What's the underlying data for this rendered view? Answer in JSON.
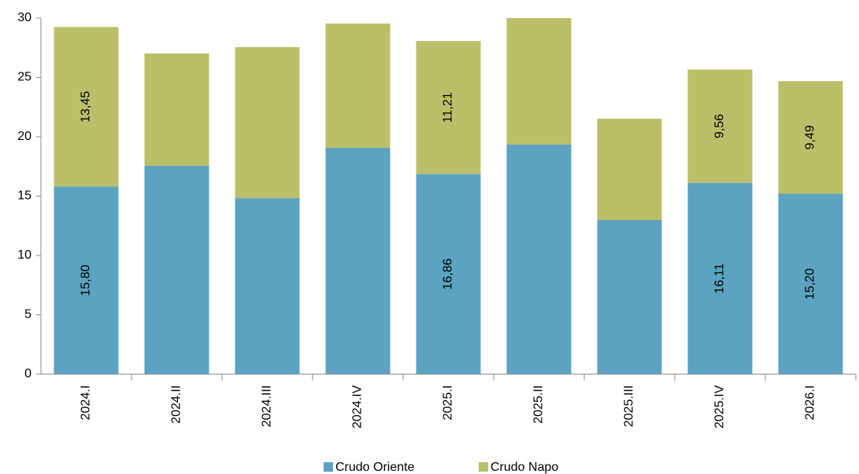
{
  "chart_data": {
    "type": "stacked_bar",
    "categories": [
      "2024.I",
      "2024.II",
      "2024.III",
      "2024.IV",
      "2025.I",
      "2025.II",
      "2025.III",
      "2025.IV",
      "2026.I"
    ],
    "series": [
      {
        "name": "Crudo Oriente",
        "color": "#5ba3c0",
        "values": [
          15.8,
          17.55,
          14.83,
          19.07,
          16.86,
          19.34,
          12.98,
          16.11,
          15.2
        ],
        "value_labels": [
          "15,80",
          null,
          null,
          null,
          "16,86",
          null,
          null,
          "16,11",
          "15,20"
        ]
      },
      {
        "name": "Crudo Napo",
        "color": "#bbbf6a",
        "values": [
          13.45,
          9.47,
          12.72,
          10.47,
          11.21,
          10.66,
          8.54,
          9.56,
          9.49
        ],
        "value_labels": [
          "13,45",
          null,
          null,
          null,
          "11,21",
          null,
          null,
          "9,56",
          "9,49"
        ]
      }
    ],
    "ylim": [
      0,
      30
    ],
    "yticks": [
      0,
      5,
      10,
      15,
      20,
      25,
      30
    ],
    "legend": "bottom"
  }
}
